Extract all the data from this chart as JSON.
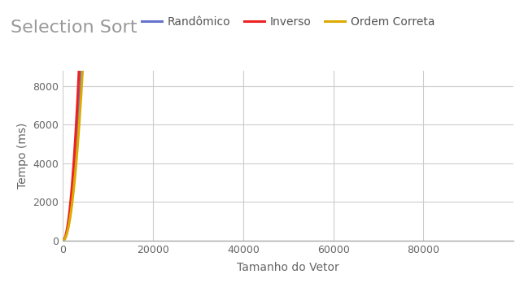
{
  "title": "Selection Sort",
  "xlabel": "Tamanho do Vetor",
  "ylabel": "Tempo (ms)",
  "x_max": 100000,
  "y_max": 8800,
  "y_display_max": 8000,
  "x_ticks": [
    0,
    20000,
    40000,
    60000,
    80000
  ],
  "y_ticks": [
    0,
    2000,
    4000,
    6000,
    8000
  ],
  "series": [
    {
      "label": "Randômico",
      "color": "#6674cc",
      "coeff": 0.00053
    },
    {
      "label": "Inverso",
      "color": "#ee2222",
      "coeff": 0.00069
    },
    {
      "label": "Ordem Correta",
      "color": "#ddaa00",
      "coeff": 0.00046
    }
  ],
  "background_color": "#ffffff",
  "grid_color": "#cccccc",
  "title_color": "#999999",
  "title_fontsize": 16,
  "label_fontsize": 10,
  "tick_fontsize": 9,
  "legend_fontsize": 10,
  "line_width": 2.2
}
